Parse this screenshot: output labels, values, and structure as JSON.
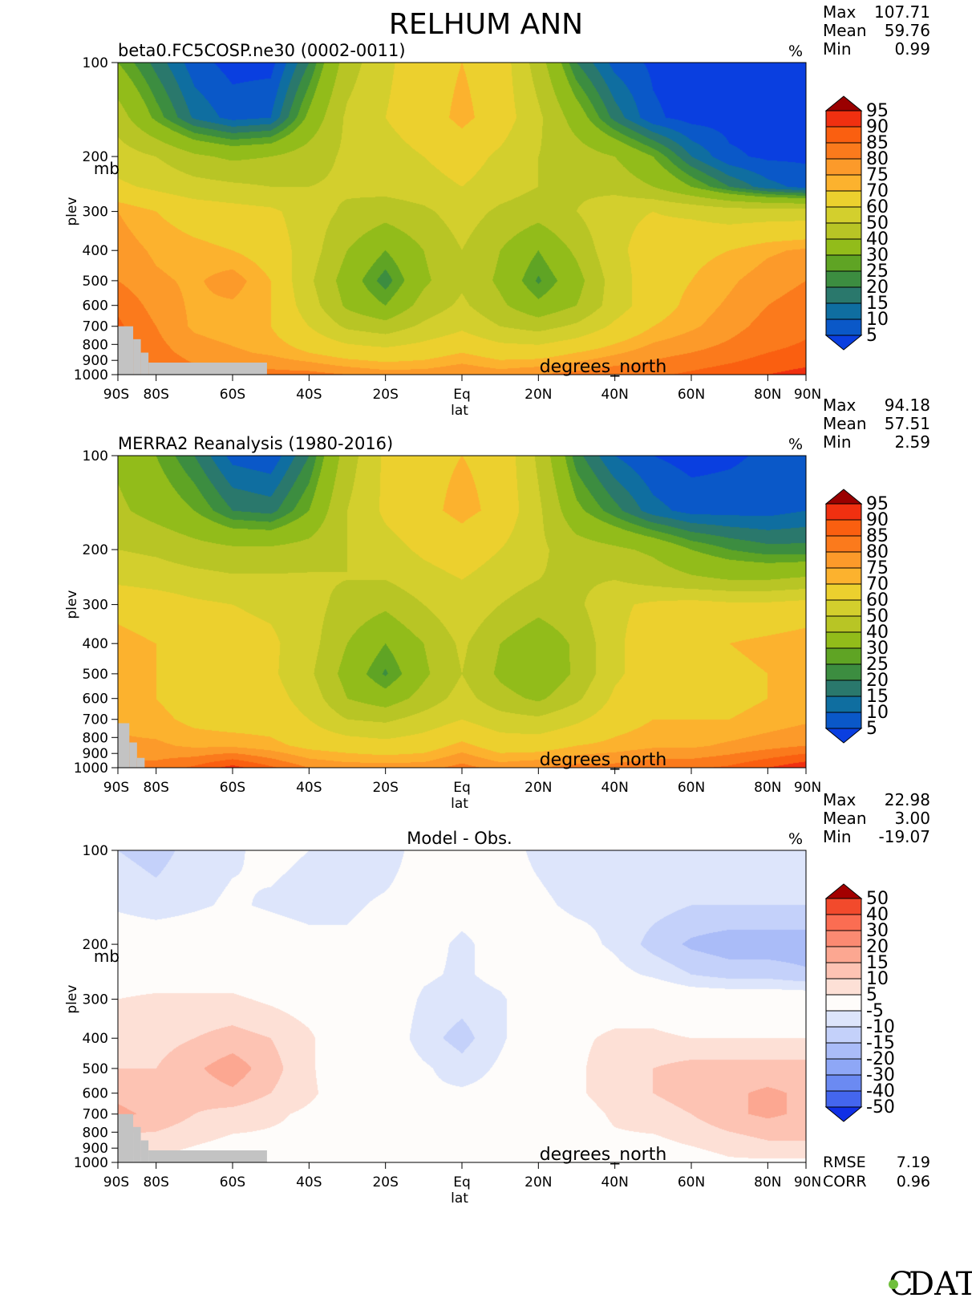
{
  "title": "RELHUM ANN",
  "chart_data": [
    {
      "type": "heatmap",
      "subtitle": "beta0.FC5COSP.ne30 (0002-0011)",
      "units": "%",
      "stats": {
        "max_label": "Max",
        "max": "107.71",
        "mean_label": "Mean",
        "mean": "59.76",
        "min_label": "Min",
        "min": "0.99"
      },
      "xlabel": "lat",
      "xunits": "degrees_north",
      "ylabel": "plev",
      "yunits": "mb",
      "xticks": [
        {
          "value": -90,
          "label": "90S"
        },
        {
          "value": -80,
          "label": "80S"
        },
        {
          "value": -60,
          "label": "60S"
        },
        {
          "value": -40,
          "label": "40S"
        },
        {
          "value": -20,
          "label": "20S"
        },
        {
          "value": 0,
          "label": "Eq"
        },
        {
          "value": 20,
          "label": "20N"
        },
        {
          "value": 40,
          "label": "40N"
        },
        {
          "value": 60,
          "label": "60N"
        },
        {
          "value": 80,
          "label": "80N"
        },
        {
          "value": 90,
          "label": "90N"
        }
      ],
      "yticks": [
        {
          "value": 100,
          "label": "100"
        },
        {
          "value": 200,
          "label": "200"
        },
        {
          "value": 300,
          "label": "300"
        },
        {
          "value": 400,
          "label": "400"
        },
        {
          "value": 500,
          "label": "500"
        },
        {
          "value": 600,
          "label": "600"
        },
        {
          "value": 700,
          "label": "700"
        },
        {
          "value": 800,
          "label": "800"
        },
        {
          "value": 900,
          "label": "900"
        },
        {
          "value": 1000,
          "label": "1000"
        }
      ],
      "legend_levels": [
        "95",
        "90",
        "85",
        "80",
        "75",
        "70",
        "60",
        "50",
        "40",
        "30",
        "25",
        "20",
        "15",
        "10",
        "5"
      ],
      "legend_colors": [
        "#9a0000",
        "#f03010",
        "#fa5f10",
        "#fb7a1c",
        "#fc9a2a",
        "#fcb22e",
        "#ecd02e",
        "#d3cf2d",
        "#b8c525",
        "#92bc1a",
        "#5fa424",
        "#3c8d40",
        "#2a786c",
        "#0f6ea0",
        "#0a58c8",
        "#0a3fe0"
      ],
      "missing_color": "#c3c3c3",
      "lat": [
        -90,
        -80,
        -70,
        -60,
        -50,
        -40,
        -30,
        -20,
        -10,
        0,
        10,
        20,
        30,
        40,
        50,
        60,
        70,
        80,
        90
      ],
      "plev": [
        100,
        150,
        200,
        250,
        300,
        400,
        500,
        600,
        700,
        850,
        1000
      ],
      "values": [
        [
          30,
          18,
          7,
          3,
          3,
          20,
          45,
          58,
          66,
          70,
          66,
          45,
          20,
          8,
          4,
          2,
          2,
          2,
          2
        ],
        [
          45,
          28,
          14,
          8,
          10,
          32,
          52,
          60,
          66,
          72,
          66,
          52,
          35,
          18,
          6,
          3,
          3,
          3,
          3
        ],
        [
          55,
          50,
          42,
          38,
          40,
          45,
          52,
          56,
          60,
          65,
          58,
          50,
          45,
          40,
          30,
          15,
          6,
          4,
          4
        ],
        [
          62,
          58,
          54,
          52,
          50,
          50,
          52,
          54,
          56,
          60,
          55,
          50,
          48,
          46,
          40,
          30,
          20,
          12,
          8
        ],
        [
          75,
          70,
          66,
          64,
          62,
          55,
          48,
          44,
          48,
          55,
          48,
          44,
          50,
          58,
          60,
          58,
          55,
          55,
          55
        ],
        [
          78,
          74,
          72,
          70,
          66,
          55,
          40,
          30,
          40,
          50,
          40,
          30,
          42,
          58,
          64,
          68,
          70,
          74,
          76
        ],
        [
          80,
          76,
          74,
          78,
          70,
          52,
          35,
          22,
          38,
          48,
          38,
          24,
          36,
          55,
          66,
          70,
          74,
          78,
          80
        ],
        [
          84,
          78,
          74,
          74,
          70,
          55,
          38,
          30,
          44,
          52,
          42,
          32,
          40,
          55,
          66,
          72,
          76,
          80,
          82
        ],
        [
          86,
          80,
          74,
          72,
          70,
          60,
          48,
          44,
          52,
          58,
          50,
          46,
          52,
          62,
          70,
          74,
          78,
          82,
          84
        ],
        [
          null,
          82,
          78,
          76,
          74,
          70,
          66,
          64,
          66,
          70,
          66,
          66,
          70,
          74,
          78,
          80,
          82,
          85,
          86
        ],
        [
          null,
          84,
          82,
          84,
          82,
          82,
          80,
          78,
          78,
          80,
          78,
          80,
          82,
          84,
          84,
          86,
          88,
          90,
          92
        ]
      ],
      "missing": [
        {
          "lat_from": -90,
          "lat_to": -86,
          "plev_from": 700,
          "plev_to": 1000
        },
        {
          "lat_from": -86,
          "lat_to": -84,
          "plev_from": 770,
          "plev_to": 1000
        },
        {
          "lat_from": -84,
          "lat_to": -82,
          "plev_from": 850,
          "plev_to": 1000
        },
        {
          "lat_from": -82,
          "lat_to": -51,
          "plev_from": 915,
          "plev_to": 1000
        }
      ]
    },
    {
      "type": "heatmap",
      "subtitle": "MERRA2 Reanalysis (1980-2016)",
      "units": "%",
      "stats": {
        "max_label": "Max",
        "max": "94.18",
        "mean_label": "Mean",
        "mean": "57.51",
        "min_label": "Min",
        "min": "2.59"
      },
      "xlabel": "lat",
      "xunits": "degrees_north",
      "ylabel": "plev",
      "yunits": "",
      "xticks": [
        {
          "value": -90,
          "label": "90S"
        },
        {
          "value": -80,
          "label": "80S"
        },
        {
          "value": -60,
          "label": "60S"
        },
        {
          "value": -40,
          "label": "40S"
        },
        {
          "value": -20,
          "label": "20S"
        },
        {
          "value": 0,
          "label": "Eq"
        },
        {
          "value": 20,
          "label": "20N"
        },
        {
          "value": 40,
          "label": "40N"
        },
        {
          "value": 60,
          "label": "60N"
        },
        {
          "value": 80,
          "label": "80N"
        },
        {
          "value": 90,
          "label": "90N"
        }
      ],
      "yticks": [
        {
          "value": 100,
          "label": "100"
        },
        {
          "value": 200,
          "label": "200"
        },
        {
          "value": 300,
          "label": "300"
        },
        {
          "value": 400,
          "label": "400"
        },
        {
          "value": 500,
          "label": "500"
        },
        {
          "value": 600,
          "label": "600"
        },
        {
          "value": 700,
          "label": "700"
        },
        {
          "value": 800,
          "label": "800"
        },
        {
          "value": 900,
          "label": "900"
        },
        {
          "value": 1000,
          "label": "1000"
        }
      ],
      "legend_levels": [
        "95",
        "90",
        "85",
        "80",
        "75",
        "70",
        "60",
        "50",
        "40",
        "30",
        "25",
        "20",
        "15",
        "10",
        "5"
      ],
      "legend_colors": [
        "#9a0000",
        "#f03010",
        "#fa5f10",
        "#fb7a1c",
        "#fc9a2a",
        "#fcb22e",
        "#ecd02e",
        "#d3cf2d",
        "#b8c525",
        "#92bc1a",
        "#5fa424",
        "#3c8d40",
        "#2a786c",
        "#0f6ea0",
        "#0a58c8",
        "#0a3fe0"
      ],
      "missing_color": "#c3c3c3",
      "lat": [
        -90,
        -80,
        -70,
        -60,
        -50,
        -40,
        -30,
        -20,
        -10,
        0,
        10,
        20,
        30,
        40,
        50,
        60,
        70,
        80,
        90
      ],
      "plev": [
        100,
        150,
        200,
        250,
        300,
        400,
        500,
        600,
        700,
        850,
        1000
      ],
      "values": [
        [
          38,
          30,
          20,
          8,
          6,
          20,
          45,
          62,
          68,
          70,
          68,
          48,
          22,
          10,
          5,
          3,
          4,
          6,
          8
        ],
        [
          42,
          36,
          30,
          20,
          18,
          30,
          50,
          62,
          68,
          72,
          68,
          52,
          32,
          22,
          12,
          8,
          8,
          8,
          10
        ],
        [
          50,
          48,
          44,
          42,
          42,
          44,
          50,
          56,
          62,
          66,
          60,
          52,
          45,
          42,
          38,
          30,
          25,
          22,
          22
        ],
        [
          58,
          56,
          54,
          52,
          52,
          52,
          50,
          50,
          56,
          60,
          55,
          50,
          48,
          50,
          46,
          42,
          40,
          40,
          42
        ],
        [
          68,
          66,
          62,
          60,
          58,
          54,
          46,
          42,
          50,
          58,
          50,
          44,
          48,
          58,
          62,
          64,
          62,
          62,
          64
        ],
        [
          72,
          70,
          66,
          64,
          62,
          54,
          40,
          30,
          40,
          52,
          40,
          32,
          42,
          58,
          66,
          70,
          70,
          72,
          74
        ],
        [
          72,
          70,
          66,
          64,
          62,
          52,
          36,
          24,
          38,
          50,
          38,
          30,
          42,
          58,
          66,
          68,
          68,
          70,
          72
        ],
        [
          72,
          70,
          66,
          64,
          64,
          56,
          40,
          34,
          44,
          54,
          44,
          38,
          48,
          62,
          68,
          68,
          68,
          70,
          72
        ],
        [
          74,
          72,
          68,
          66,
          66,
          60,
          50,
          48,
          54,
          60,
          54,
          52,
          58,
          66,
          70,
          70,
          70,
          72,
          74
        ],
        [
          null,
          76,
          74,
          74,
          72,
          68,
          66,
          64,
          66,
          72,
          66,
          66,
          70,
          72,
          74,
          74,
          76,
          78,
          80
        ],
        [
          null,
          82,
          86,
          92,
          86,
          80,
          78,
          78,
          78,
          82,
          78,
          80,
          82,
          82,
          84,
          84,
          86,
          90,
          94
        ]
      ],
      "missing": [
        {
          "lat_from": -90,
          "lat_to": -87,
          "plev_from": 720,
          "plev_to": 1000
        },
        {
          "lat_from": -87,
          "lat_to": -85,
          "plev_from": 830,
          "plev_to": 1000
        },
        {
          "lat_from": -85,
          "lat_to": -83,
          "plev_from": 930,
          "plev_to": 1000
        }
      ]
    },
    {
      "type": "heatmap",
      "subtitle": "Model - Obs.",
      "units": "%",
      "stats": {
        "max_label": "Max",
        "max": "22.98",
        "mean_label": "Mean",
        "mean": "3.00",
        "min_label": "Min",
        "min": "-19.07"
      },
      "xlabel": "lat",
      "xunits": "degrees_north",
      "ylabel": "plev",
      "yunits": "mb",
      "xticks": [
        {
          "value": -90,
          "label": "90S"
        },
        {
          "value": -80,
          "label": "80S"
        },
        {
          "value": -60,
          "label": "60S"
        },
        {
          "value": -40,
          "label": "40S"
        },
        {
          "value": -20,
          "label": "20S"
        },
        {
          "value": 0,
          "label": "Eq"
        },
        {
          "value": 20,
          "label": "20N"
        },
        {
          "value": 40,
          "label": "40N"
        },
        {
          "value": 60,
          "label": "60N"
        },
        {
          "value": 80,
          "label": "80N"
        },
        {
          "value": 90,
          "label": "90N"
        }
      ],
      "yticks": [
        {
          "value": 100,
          "label": "100"
        },
        {
          "value": 200,
          "label": "200"
        },
        {
          "value": 300,
          "label": "300"
        },
        {
          "value": 400,
          "label": "400"
        },
        {
          "value": 500,
          "label": "500"
        },
        {
          "value": 600,
          "label": "600"
        },
        {
          "value": 700,
          "label": "700"
        },
        {
          "value": 800,
          "label": "800"
        },
        {
          "value": 900,
          "label": "900"
        },
        {
          "value": 1000,
          "label": "1000"
        }
      ],
      "legend_levels": [
        "50",
        "40",
        "30",
        "20",
        "15",
        "10",
        "5",
        "-5",
        "-10",
        "-15",
        "-20",
        "-30",
        "-40",
        "-50"
      ],
      "legend_colors": [
        "#a30000",
        "#f24a2c",
        "#fb6d52",
        "#fb8a72",
        "#fca791",
        "#fdc3b3",
        "#fde0d6",
        "#fefcfa",
        "#dde5fb",
        "#c4d1fa",
        "#aabcf8",
        "#8ea7f6",
        "#6b8af2",
        "#4466ee",
        "#1030e6"
      ],
      "missing_color": "#c3c3c3",
      "lat": [
        -90,
        -80,
        -70,
        -60,
        -50,
        -40,
        -30,
        -20,
        -10,
        0,
        10,
        20,
        30,
        40,
        50,
        60,
        70,
        80,
        90
      ],
      "plev": [
        100,
        150,
        200,
        250,
        300,
        400,
        500,
        600,
        700,
        850,
        1000
      ],
      "values": [
        [
          -10,
          -12,
          -8,
          -6,
          -3,
          -5,
          -8,
          -8,
          -2,
          0,
          -3,
          -6,
          -8,
          -6,
          -5,
          -6,
          -6,
          -6,
          -6
        ],
        [
          -6,
          -8,
          -6,
          -4,
          -6,
          -8,
          -6,
          -4,
          -2,
          -3,
          -3,
          -4,
          -6,
          -6,
          -8,
          -10,
          -10,
          -10,
          -10
        ],
        [
          0,
          0,
          0,
          0,
          0,
          -2,
          -4,
          -2,
          -3,
          -6,
          -3,
          -2,
          -3,
          -6,
          -12,
          -16,
          -18,
          -18,
          -18
        ],
        [
          2,
          2,
          2,
          2,
          0,
          0,
          0,
          0,
          -4,
          -6,
          -3,
          0,
          0,
          -3,
          -6,
          -10,
          -12,
          -12,
          -14
        ],
        [
          5,
          6,
          6,
          6,
          4,
          2,
          0,
          0,
          -6,
          -8,
          -6,
          0,
          2,
          2,
          2,
          0,
          0,
          0,
          0
        ],
        [
          8,
          8,
          10,
          12,
          10,
          6,
          0,
          0,
          -8,
          -12,
          -6,
          0,
          4,
          6,
          6,
          5,
          5,
          5,
          5
        ],
        [
          10,
          10,
          14,
          18,
          12,
          6,
          0,
          0,
          -4,
          -8,
          -4,
          0,
          4,
          8,
          10,
          12,
          12,
          12,
          12
        ],
        [
          14,
          12,
          12,
          14,
          10,
          6,
          2,
          0,
          -4,
          -4,
          -3,
          2,
          4,
          8,
          10,
          12,
          14,
          16,
          14
        ],
        [
          16,
          14,
          10,
          8,
          6,
          4,
          2,
          0,
          -2,
          -2,
          -2,
          0,
          2,
          6,
          8,
          10,
          14,
          16,
          14
        ],
        [
          null,
          8,
          6,
          4,
          4,
          4,
          2,
          0,
          0,
          0,
          0,
          0,
          2,
          4,
          4,
          6,
          8,
          10,
          10
        ],
        [
          null,
          4,
          2,
          0,
          0,
          2,
          2,
          0,
          0,
          0,
          0,
          0,
          0,
          2,
          2,
          2,
          4,
          4,
          4
        ]
      ],
      "missing": [
        {
          "lat_from": -90,
          "lat_to": -86,
          "plev_from": 700,
          "plev_to": 1000
        },
        {
          "lat_from": -86,
          "lat_to": -84,
          "plev_from": 770,
          "plev_to": 1000
        },
        {
          "lat_from": -84,
          "lat_to": -82,
          "plev_from": 850,
          "plev_to": 1000
        },
        {
          "lat_from": -82,
          "lat_to": -51,
          "plev_from": 915,
          "plev_to": 1000
        }
      ],
      "metrics": {
        "rmse_label": "RMSE",
        "rmse": "7.19",
        "corr_label": "CORR",
        "corr": "0.96"
      }
    }
  ],
  "logo": {
    "text": "DAT",
    "icon": "cdat-logo-c-icon"
  }
}
